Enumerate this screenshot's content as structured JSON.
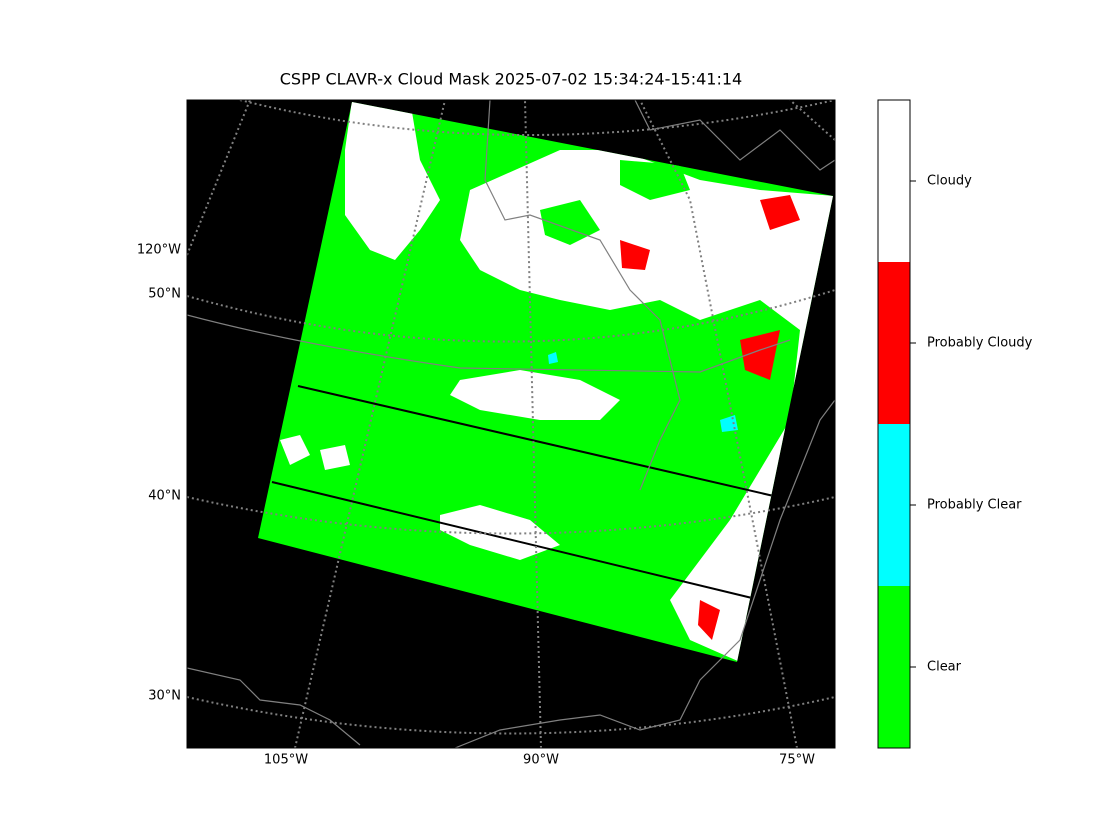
{
  "title": "CSPP CLAVR-x Cloud Mask 2025-07-02 15:34:24-15:41:14",
  "map": {
    "left_labels": [
      "120°W",
      "50°N",
      "40°N",
      "30°N"
    ],
    "bottom_labels": [
      "105°W",
      "90°W",
      "75°W"
    ]
  },
  "colorbar": {
    "classes": [
      {
        "name": "Clear",
        "color": "#00ff00"
      },
      {
        "name": "Probably Clear",
        "color": "#00ffff"
      },
      {
        "name": "Probably Cloudy",
        "color": "#ff0000"
      },
      {
        "name": "Cloudy",
        "color": "#ffffff"
      }
    ]
  }
}
